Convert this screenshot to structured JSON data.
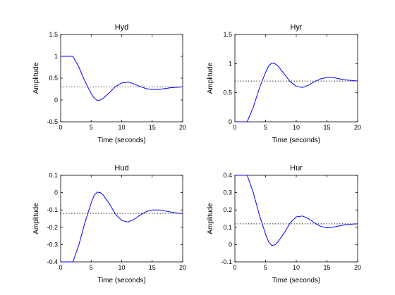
{
  "colors": {
    "response": "#0000ff",
    "reference": "#000000",
    "axes": "#000000",
    "background": "#ffffff"
  },
  "chart_data": [
    {
      "type": "line",
      "title": "Hyd",
      "xlabel": "Time (seconds)",
      "ylabel": "Amplitude",
      "xlim": [
        0,
        20
      ],
      "ylim": [
        -0.5,
        1.5
      ],
      "xticks": [
        "0",
        "5",
        "10",
        "15",
        "20"
      ],
      "yticks": [
        "-0.5",
        "0",
        "0.5",
        "1",
        "1.5"
      ],
      "grid": false,
      "reference_value": 0.3,
      "series": [
        {
          "line_style": "solid",
          "x": [
            0,
            2,
            3,
            4,
            5,
            5.5,
            6,
            6.5,
            7,
            8,
            9,
            10,
            11,
            12,
            13,
            14,
            15,
            16,
            17,
            18,
            19,
            20
          ],
          "y": [
            1.0,
            1.0,
            0.75,
            0.42,
            0.15,
            0.04,
            -0.01,
            0.0,
            0.04,
            0.17,
            0.31,
            0.39,
            0.41,
            0.37,
            0.31,
            0.26,
            0.24,
            0.24,
            0.26,
            0.28,
            0.29,
            0.3
          ]
        },
        {
          "line_style": "dotted",
          "x": [
            0,
            20
          ],
          "y": [
            0.3,
            0.3
          ]
        }
      ]
    },
    {
      "type": "line",
      "title": "Hyr",
      "xlabel": "Time (seconds)",
      "ylabel": "Amplitude",
      "xlim": [
        0,
        20
      ],
      "ylim": [
        0,
        1.5
      ],
      "xticks": [
        "0",
        "5",
        "10",
        "15",
        "20"
      ],
      "yticks": [
        "0",
        "0.5",
        "1",
        "1.5"
      ],
      "grid": false,
      "reference_value": 0.7,
      "series": [
        {
          "line_style": "solid",
          "x": [
            0,
            2,
            3,
            4,
            5,
            5.5,
            6,
            6.5,
            7,
            8,
            9,
            10,
            11,
            12,
            13,
            14,
            15,
            16,
            17,
            18,
            19,
            20
          ],
          "y": [
            0,
            0,
            0.25,
            0.58,
            0.85,
            0.96,
            1.01,
            1.0,
            0.96,
            0.83,
            0.69,
            0.61,
            0.59,
            0.63,
            0.69,
            0.74,
            0.76,
            0.76,
            0.74,
            0.72,
            0.71,
            0.7
          ]
        },
        {
          "line_style": "dotted",
          "x": [
            0,
            20
          ],
          "y": [
            0.7,
            0.7
          ]
        }
      ]
    },
    {
      "type": "line",
      "title": "Hud",
      "xlabel": "Time (seconds)",
      "ylabel": "Amplitude",
      "xlim": [
        0,
        20
      ],
      "ylim": [
        -0.4,
        0.1
      ],
      "xticks": [
        "0",
        "5",
        "10",
        "15",
        "20"
      ],
      "yticks": [
        "-0.4",
        "-0.3",
        "-0.2",
        "-0.1",
        "0",
        "0.1"
      ],
      "grid": false,
      "reference_value": -0.12,
      "series": [
        {
          "line_style": "solid",
          "x": [
            0,
            2,
            3,
            4,
            5,
            5.5,
            6,
            6.5,
            7,
            8,
            9,
            10,
            11,
            12,
            13,
            14,
            15,
            16,
            17,
            18,
            19,
            20
          ],
          "y": [
            -0.4,
            -0.4,
            -0.3,
            -0.17,
            -0.06,
            -0.015,
            0.003,
            0.0,
            -0.015,
            -0.065,
            -0.125,
            -0.16,
            -0.17,
            -0.155,
            -0.13,
            -0.11,
            -0.1,
            -0.1,
            -0.105,
            -0.112,
            -0.118,
            -0.12
          ]
        },
        {
          "line_style": "dotted",
          "x": [
            0,
            20
          ],
          "y": [
            -0.12,
            -0.12
          ]
        }
      ]
    },
    {
      "type": "line",
      "title": "Hur",
      "xlabel": "Time (seconds)",
      "ylabel": "Amplitude",
      "xlim": [
        0,
        20
      ],
      "ylim": [
        -0.1,
        0.4
      ],
      "xticks": [
        "0",
        "5",
        "10",
        "15",
        "20"
      ],
      "yticks": [
        "-0.1",
        "0",
        "0.1",
        "0.2",
        "0.3",
        "0.4"
      ],
      "grid": false,
      "reference_value": 0.12,
      "series": [
        {
          "line_style": "solid",
          "x": [
            0,
            2,
            3,
            4,
            5,
            5.5,
            6,
            6.5,
            7,
            8,
            9,
            10,
            11,
            12,
            13,
            14,
            15,
            16,
            17,
            18,
            19,
            20
          ],
          "y": [
            0.4,
            0.4,
            0.3,
            0.17,
            0.06,
            0.015,
            -0.005,
            -0.002,
            0.015,
            0.065,
            0.125,
            0.16,
            0.165,
            0.15,
            0.125,
            0.105,
            0.097,
            0.1,
            0.108,
            0.115,
            0.118,
            0.12
          ]
        },
        {
          "line_style": "dotted",
          "x": [
            0,
            20
          ],
          "y": [
            0.12,
            0.12
          ]
        }
      ]
    }
  ]
}
